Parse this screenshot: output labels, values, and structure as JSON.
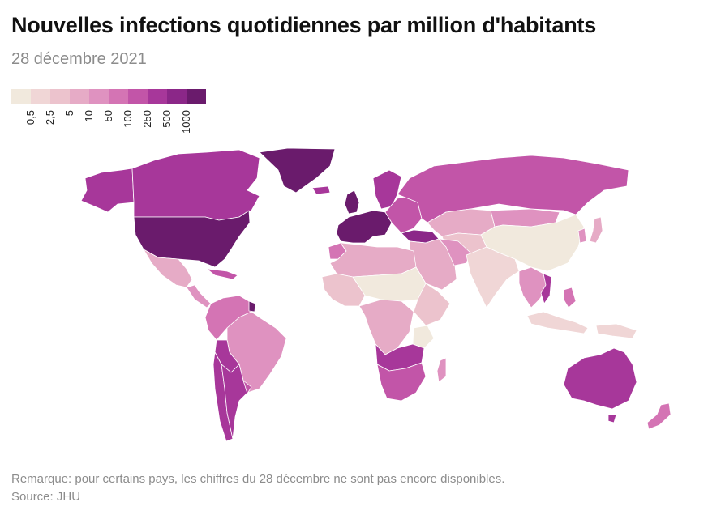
{
  "title": "Nouvelles infections quotidiennes par million d'habitants",
  "subtitle": "28 décembre 2021",
  "legend": {
    "colors": [
      "#f1e9dd",
      "#f0d6d6",
      "#ecc3cd",
      "#e6abc6",
      "#df92c0",
      "#d474b4",
      "#c255a8",
      "#a7379a",
      "#8b2788",
      "#6a1b6c"
    ],
    "ticks": [
      "0,5",
      "2,5",
      "5",
      "10",
      "50",
      "100",
      "250",
      "500",
      "1000"
    ]
  },
  "note": "Remarque: pour certains pays, les chiffres du 28 décembre ne sont pas encore disponibles.",
  "source": "Source: JHU",
  "map_regions": [
    {
      "name": "alaska",
      "color": "#a7379a"
    },
    {
      "name": "canada",
      "color": "#a7379a"
    },
    {
      "name": "greenland",
      "color": "#6a1b6c"
    },
    {
      "name": "usa",
      "color": "#6a1b6c"
    },
    {
      "name": "mexico",
      "color": "#e6abc6"
    },
    {
      "name": "central-america",
      "color": "#df92c0"
    },
    {
      "name": "caribbean",
      "color": "#c255a8"
    },
    {
      "name": "french-guiana",
      "color": "#6a1b6c"
    },
    {
      "name": "south-america-north",
      "color": "#d474b4"
    },
    {
      "name": "brazil",
      "color": "#df92c0"
    },
    {
      "name": "bolivia",
      "color": "#a7379a"
    },
    {
      "name": "argentina",
      "color": "#a7379a"
    },
    {
      "name": "chile",
      "color": "#a7379a"
    },
    {
      "name": "uruguay",
      "color": "#c255a8"
    },
    {
      "name": "iceland",
      "color": "#a7379a"
    },
    {
      "name": "scandinavia",
      "color": "#a7379a"
    },
    {
      "name": "western-europe",
      "color": "#6a1b6c"
    },
    {
      "name": "uk",
      "color": "#6a1b6c"
    },
    {
      "name": "eastern-europe",
      "color": "#c255a8"
    },
    {
      "name": "turkey",
      "color": "#8b2788"
    },
    {
      "name": "russia",
      "color": "#c255a8"
    },
    {
      "name": "kazakhstan",
      "color": "#e6abc6"
    },
    {
      "name": "central-asia",
      "color": "#ecc3cd"
    },
    {
      "name": "mongolia",
      "color": "#df92c0"
    },
    {
      "name": "china",
      "color": "#f1e9dd"
    },
    {
      "name": "korea",
      "color": "#df92c0"
    },
    {
      "name": "japan",
      "color": "#e6abc6"
    },
    {
      "name": "middle-east",
      "color": "#e6abc6"
    },
    {
      "name": "iran",
      "color": "#df92c0"
    },
    {
      "name": "india",
      "color": "#f0d6d6"
    },
    {
      "name": "southeast-asia",
      "color": "#df92c0"
    },
    {
      "name": "vietnam",
      "color": "#a7379a"
    },
    {
      "name": "indonesia",
      "color": "#f0d6d6"
    },
    {
      "name": "philippines",
      "color": "#d474b4"
    },
    {
      "name": "papua",
      "color": "#f0d6d6"
    },
    {
      "name": "north-africa",
      "color": "#e6abc6"
    },
    {
      "name": "morocco",
      "color": "#d474b4"
    },
    {
      "name": "sahel",
      "color": "#f1e9dd"
    },
    {
      "name": "west-africa",
      "color": "#ecc3cd"
    },
    {
      "name": "central-africa",
      "color": "#e6abc6"
    },
    {
      "name": "east-africa",
      "color": "#ecc3cd"
    },
    {
      "name": "tanzania",
      "color": "#f1e9dd"
    },
    {
      "name": "southern-africa",
      "color": "#c255a8"
    },
    {
      "name": "zambia-zimbabwe",
      "color": "#a7379a"
    },
    {
      "name": "madagascar",
      "color": "#df92c0"
    },
    {
      "name": "australia",
      "color": "#a7379a"
    },
    {
      "name": "tasmania",
      "color": "#a7379a"
    },
    {
      "name": "new-zealand",
      "color": "#d474b4"
    }
  ]
}
